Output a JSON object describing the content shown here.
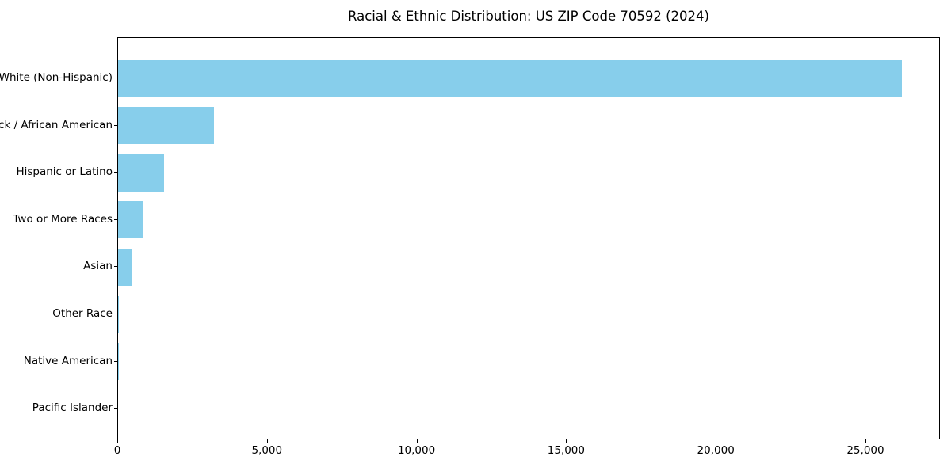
{
  "figure": {
    "background_color": "#ffffff",
    "spine_color": "#000000",
    "text_color": "#000000"
  },
  "chart_data": {
    "type": "bar",
    "orientation": "horizontal",
    "title": "Racial & Ethnic Distribution: US ZIP Code 70592 (2024)",
    "categories": [
      "White (Non-Hispanic)",
      "Black / African American",
      "Hispanic or Latino",
      "Two or More Races",
      "Asian",
      "Other Race",
      "Native American",
      "Pacific Islander"
    ],
    "values": [
      26190,
      3200,
      1535,
      850,
      440,
      30,
      10,
      0
    ],
    "bar_color": "#87CEEB",
    "xlabel": "",
    "ylabel": "",
    "xlim": [
      0,
      27490
    ],
    "xticks": [
      0,
      5000,
      10000,
      15000,
      20000,
      25000
    ],
    "xticklabels": [
      "0",
      "5,000",
      "10,000",
      "15,000",
      "20,000",
      "25,000"
    ],
    "grid": false,
    "legend": null
  }
}
